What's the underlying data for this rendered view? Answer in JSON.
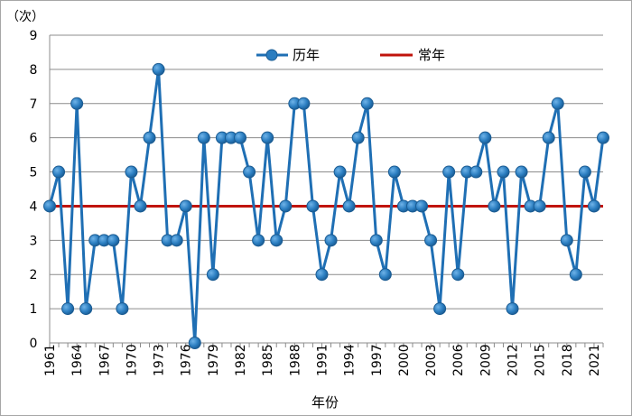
{
  "chart_data": {
    "type": "line",
    "unit_label": "（次）",
    "xlabel": "年份",
    "ylabel": "",
    "ylim": [
      0,
      9
    ],
    "y_ticks": [
      0,
      1,
      2,
      3,
      4,
      5,
      6,
      7,
      8,
      9
    ],
    "x_tick_labels": [
      "1961",
      "1964",
      "1967",
      "1970",
      "1973",
      "1976",
      "1979",
      "1982",
      "1985",
      "1988",
      "1991",
      "1994",
      "1997",
      "2000",
      "2003",
      "2006",
      "2009",
      "2012",
      "2015",
      "2018",
      "2021"
    ],
    "grid": true,
    "legend_position": "top",
    "series": [
      {
        "name": "历年",
        "color": "#1f6fb4",
        "x": [
          1961,
          1962,
          1963,
          1964,
          1965,
          1966,
          1967,
          1968,
          1969,
          1970,
          1971,
          1972,
          1973,
          1974,
          1975,
          1976,
          1977,
          1978,
          1979,
          1980,
          1981,
          1982,
          1983,
          1984,
          1985,
          1986,
          1987,
          1988,
          1989,
          1990,
          1991,
          1992,
          1993,
          1994,
          1995,
          1996,
          1997,
          1998,
          1999,
          2000,
          2001,
          2002,
          2003,
          2004,
          2005,
          2006,
          2007,
          2008,
          2009,
          2010,
          2011,
          2012,
          2013,
          2014,
          2015,
          2016,
          2017,
          2018,
          2019,
          2020,
          2021,
          2022
        ],
        "values": [
          4,
          5,
          1,
          7,
          1,
          3,
          3,
          3,
          1,
          5,
          4,
          6,
          8,
          3,
          3,
          4,
          0,
          6,
          2,
          6,
          6,
          6,
          5,
          3,
          6,
          3,
          4,
          7,
          7,
          4,
          2,
          3,
          5,
          4,
          6,
          7,
          3,
          2,
          5,
          4,
          4,
          4,
          3,
          1,
          5,
          2,
          5,
          5,
          6,
          4,
          5,
          1,
          5,
          4,
          4,
          6,
          7,
          3,
          2,
          5,
          4,
          6
        ]
      },
      {
        "name": "常年",
        "color": "#c0140c",
        "values": [
          4
        ]
      }
    ]
  }
}
